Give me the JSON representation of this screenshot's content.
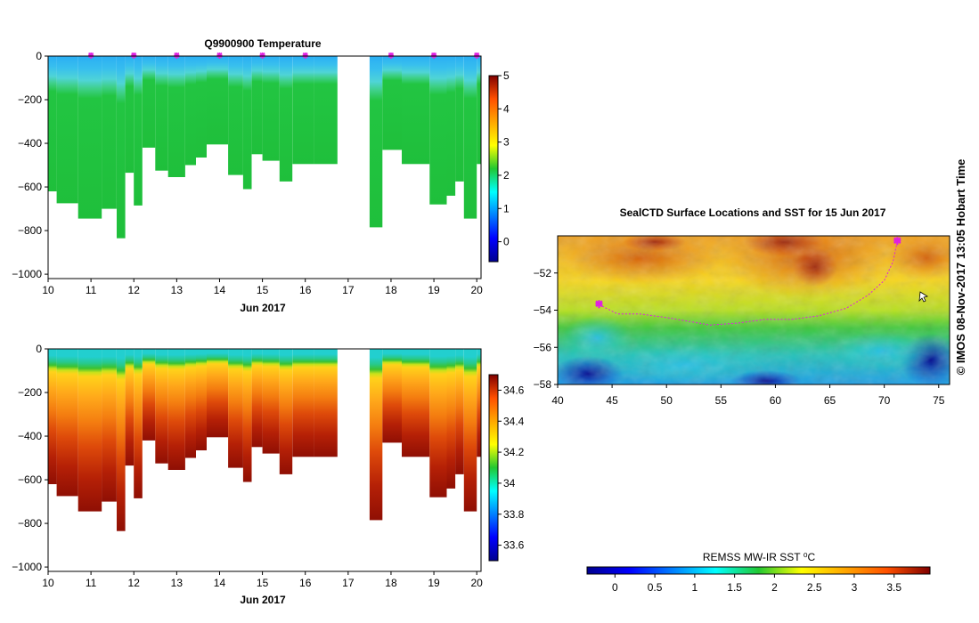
{
  "page": {
    "side_text": "© IMOS 08-Nov-2017 13:05 Hobart Time"
  },
  "chart_data": [
    {
      "type": "heatmap",
      "name": "temperature-section",
      "title": "Q9900900  Temperature",
      "xlabel": "Jun 2017",
      "ylabel": "",
      "xlim": [
        10,
        20.1
      ],
      "ylim": [
        -1020,
        0
      ],
      "x_ticks": [
        10,
        11,
        12,
        13,
        14,
        15,
        16,
        17,
        18,
        19,
        20
      ],
      "y_ticks": [
        0,
        -200,
        -400,
        -600,
        -800,
        -1000
      ],
      "profiles": [
        {
          "t": 10.0,
          "depth": 620
        },
        {
          "t": 10.2,
          "depth": 675
        },
        {
          "t": 10.7,
          "depth": 745
        },
        {
          "t": 11.25,
          "depth": 700
        },
        {
          "t": 11.6,
          "depth": 835
        },
        {
          "t": 11.8,
          "depth": 535
        },
        {
          "t": 12.0,
          "depth": 685
        },
        {
          "t": 12.2,
          "depth": 420
        },
        {
          "t": 12.5,
          "depth": 525
        },
        {
          "t": 12.8,
          "depth": 555
        },
        {
          "t": 13.2,
          "depth": 500
        },
        {
          "t": 13.45,
          "depth": 465
        },
        {
          "t": 13.7,
          "depth": 405
        },
        {
          "t": 14.2,
          "depth": 545
        },
        {
          "t": 14.55,
          "depth": 610
        },
        {
          "t": 14.75,
          "depth": 450
        },
        {
          "t": 15.0,
          "depth": 480
        },
        {
          "t": 15.4,
          "depth": 575
        },
        {
          "t": 15.7,
          "depth": 495
        },
        {
          "t": 16.2,
          "depth": 495
        },
        {
          "t": 17.5,
          "depth": 785
        },
        {
          "t": 17.8,
          "depth": 430
        },
        {
          "t": 18.25,
          "depth": 495
        },
        {
          "t": 18.9,
          "depth": 680
        },
        {
          "t": 19.3,
          "depth": 640
        },
        {
          "t": 19.5,
          "depth": 575
        },
        {
          "t": 19.7,
          "depth": 745
        },
        {
          "t": 20.0,
          "depth": 495
        }
      ],
      "gaps": [
        [
          16.75,
          17.5
        ]
      ],
      "profile_end": 20.1,
      "surface_markers": [
        11,
        12,
        13,
        14,
        15,
        16,
        18,
        19,
        20
      ],
      "colorbar": {
        "min": -0.6,
        "max": 5,
        "ticks": [
          0,
          1,
          2,
          3,
          4,
          5
        ],
        "label": ""
      }
    },
    {
      "type": "heatmap",
      "name": "salinity-section",
      "title": "",
      "xlabel": "Jun 2017",
      "ylabel": "",
      "xlim": [
        10,
        20.1
      ],
      "ylim": [
        -1020,
        0
      ],
      "x_ticks": [
        10,
        11,
        12,
        13,
        14,
        15,
        16,
        17,
        18,
        19,
        20
      ],
      "y_ticks": [
        0,
        -200,
        -400,
        -600,
        -800,
        -1000
      ],
      "colorbar": {
        "min": 33.5,
        "max": 34.7,
        "ticks": [
          33.6,
          33.8,
          34,
          34.2,
          34.4,
          34.6
        ],
        "tick_labels": [
          "33.6",
          "33.8",
          "34",
          "34.2",
          "34.4",
          "34.6"
        ],
        "label": ""
      }
    },
    {
      "type": "heatmap",
      "name": "sst-map",
      "title": "SealCTD Surface Locations and SST for 15 Jun 2017",
      "xlabel": "",
      "ylabel": "",
      "xlim": [
        40,
        76
      ],
      "ylim": [
        -58,
        -50
      ],
      "x_ticks": [
        40,
        45,
        50,
        55,
        60,
        65,
        70,
        75
      ],
      "y_ticks": [
        -52,
        -54,
        -56,
        -58
      ],
      "track": [
        [
          43.8,
          -53.7
        ],
        [
          45.5,
          -54.2
        ],
        [
          47.5,
          -54.2
        ],
        [
          50.0,
          -54.4
        ],
        [
          52.0,
          -54.6
        ],
        [
          54.0,
          -54.8
        ],
        [
          56.5,
          -54.7
        ],
        [
          59.0,
          -54.5
        ],
        [
          61.5,
          -54.5
        ],
        [
          64.0,
          -54.3
        ],
        [
          66.5,
          -53.9
        ],
        [
          68.5,
          -53.2
        ],
        [
          70.0,
          -52.4
        ],
        [
          70.8,
          -51.4
        ],
        [
          71.2,
          -50.3
        ]
      ],
      "start_marker": [
        71.2,
        -50.3
      ],
      "end_marker": [
        43.8,
        -53.7
      ],
      "colorbar": {
        "min": -0.35,
        "max": 3.95,
        "ticks": [
          0,
          0.5,
          1,
          1.5,
          2,
          2.5,
          3,
          3.5
        ],
        "tick_labels": [
          "0",
          "0.5",
          "1",
          "1.5",
          "2",
          "2.5",
          "3",
          "3.5"
        ],
        "label": "REMSS MW-IR SST ⁰C"
      }
    }
  ]
}
